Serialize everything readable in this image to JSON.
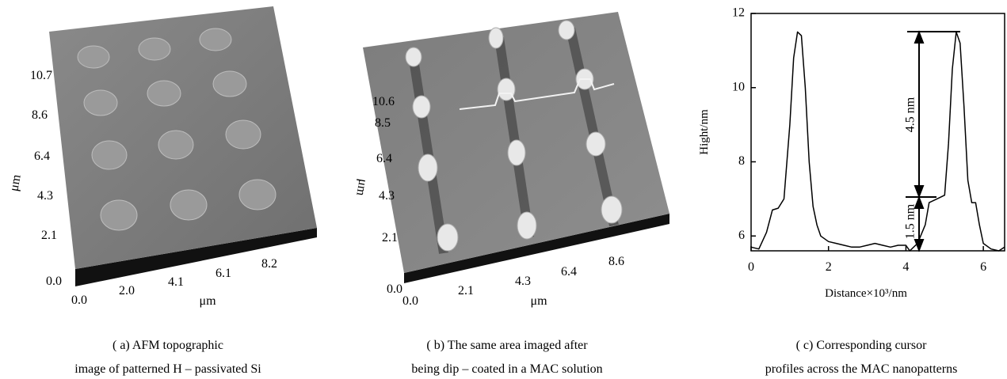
{
  "panels": [
    {
      "y_label": "μm",
      "x_label": "μm",
      "y_ticks": [
        "10.7",
        "8.6",
        "6.4",
        "4.3",
        "2.1",
        "0.0"
      ],
      "x_ticks": [
        "0.0",
        "2.0",
        "4.1",
        "6.1",
        "8.2"
      ],
      "caption": [
        "( a)  AFM topographic",
        "image of patterned H – passivated Si"
      ]
    },
    {
      "y_label": "μm",
      "x_label": "μm",
      "y_ticks": [
        "10.6",
        "8.5",
        "6.4",
        "4.3",
        "2.1",
        "0.0"
      ],
      "x_ticks": [
        "0.0",
        "2.1",
        "4.3",
        "6.4",
        "8.6"
      ],
      "caption": [
        "( b)  The same area imaged after",
        "being dip – coated in a MAC solution"
      ]
    }
  ],
  "chart_data": {
    "type": "line",
    "x_label": "Distance×10³/nm",
    "y_label": "Hight/nm",
    "caption": [
      "( c)  Corresponding cursor",
      "profiles across the MAC nanopatterns"
    ],
    "annotations": [
      "4.5 nm",
      "1.5 nm"
    ],
    "xlim": [
      0,
      6.55
    ],
    "xticks": [
      0,
      2,
      4,
      6
    ],
    "ylim": [
      5.6,
      12
    ],
    "yticks": [
      6,
      8,
      10,
      12
    ],
    "color": "#000000",
    "x": [
      0,
      0.2,
      0.4,
      0.55,
      0.7,
      0.85,
      1.0,
      1.1,
      1.2,
      1.3,
      1.4,
      1.5,
      1.6,
      1.7,
      1.8,
      2.0,
      2.2,
      2.4,
      2.6,
      2.8,
      3.0,
      3.2,
      3.4,
      3.6,
      3.8,
      4.0,
      4.1,
      4.3,
      4.5,
      4.6,
      4.8,
      5.0,
      5.1,
      5.2,
      5.3,
      5.4,
      5.5,
      5.6,
      5.7,
      5.8,
      5.9,
      6.0,
      6.2,
      6.4,
      6.55
    ],
    "values": [
      5.7,
      5.65,
      6.1,
      6.7,
      6.75,
      7.0,
      9.0,
      10.8,
      11.5,
      11.4,
      10.0,
      8.0,
      6.8,
      6.3,
      6.0,
      5.85,
      5.8,
      5.75,
      5.7,
      5.7,
      5.75,
      5.8,
      5.75,
      5.7,
      5.75,
      5.75,
      5.6,
      5.8,
      6.3,
      6.9,
      7.0,
      7.1,
      8.5,
      10.5,
      11.5,
      11.2,
      9.5,
      7.5,
      6.9,
      6.9,
      6.3,
      5.8,
      5.65,
      5.6,
      5.7
    ]
  }
}
